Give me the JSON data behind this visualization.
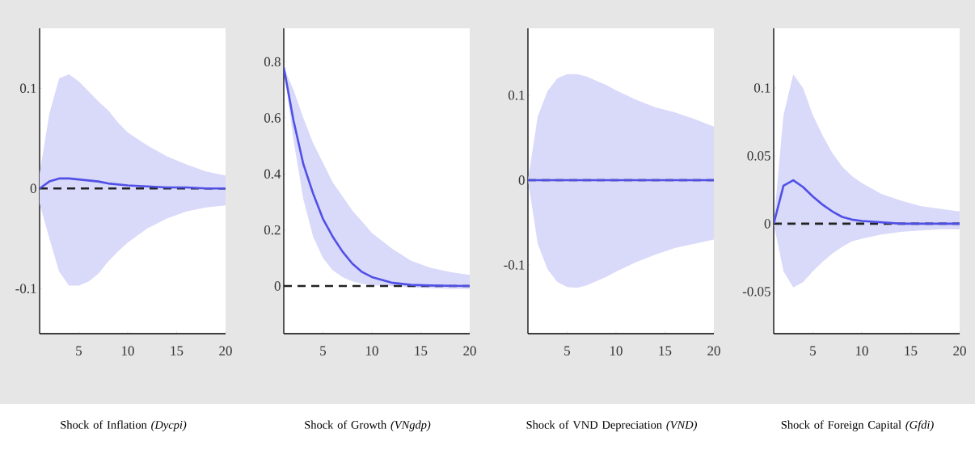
{
  "chart_data": [
    {
      "type": "line",
      "xlabel": "Shock of Inflation *(Dycpi)*",
      "xlim": [
        1,
        20
      ],
      "ylim": [
        -0.145,
        0.16
      ],
      "xticks": [
        5,
        10,
        15,
        20
      ],
      "yticks": [
        -0.1,
        0,
        0.1
      ],
      "x": [
        1,
        2,
        3,
        4,
        5,
        6,
        7,
        8,
        9,
        10,
        12,
        14,
        16,
        18,
        20
      ],
      "series": [
        {
          "color": "#5050e6",
          "values": [
            0,
            0.007,
            0.01,
            0.01,
            0.009,
            0.008,
            0.007,
            0.005,
            0.004,
            0.003,
            0.002,
            0.001,
            0.001,
            0,
            0
          ],
          "lower": [
            -0.015,
            -0.05,
            -0.083,
            -0.097,
            -0.097,
            -0.093,
            -0.085,
            -0.073,
            -0.063,
            -0.054,
            -0.04,
            -0.03,
            -0.023,
            -0.019,
            -0.017
          ],
          "upper": [
            0.015,
            0.075,
            0.11,
            0.114,
            0.107,
            0.097,
            0.087,
            0.078,
            0.066,
            0.056,
            0.043,
            0.032,
            0.024,
            0.017,
            0.013
          ]
        }
      ],
      "ref_lines": [
        {
          "axis": "y",
          "value": 0,
          "color": "#222222",
          "line_style": "dashed"
        }
      ]
    },
    {
      "type": "line",
      "xlabel": "Shock of Growth *(VNgdp)*",
      "xlim": [
        1,
        20
      ],
      "ylim": [
        -0.17,
        0.92
      ],
      "xticks": [
        5,
        10,
        15,
        20
      ],
      "yticks": [
        0,
        0.2,
        0.4,
        0.6,
        0.8
      ],
      "x": [
        1,
        2,
        3,
        4,
        5,
        6,
        7,
        8,
        9,
        10,
        12,
        14,
        16,
        18,
        20
      ],
      "series": [
        {
          "color": "#5050e6",
          "values": [
            0.78,
            0.59,
            0.435,
            0.33,
            0.24,
            0.176,
            0.123,
            0.08,
            0.05,
            0.032,
            0.012,
            0.004,
            0.002,
            0.001,
            0
          ],
          "lower": [
            0.78,
            0.52,
            0.31,
            0.176,
            0.1,
            0.056,
            0.032,
            0.017,
            0.008,
            0.003,
            0,
            -0.005,
            -0.008,
            -0.01,
            -0.01
          ],
          "upper": [
            0.78,
            0.7,
            0.6,
            0.51,
            0.44,
            0.37,
            0.32,
            0.27,
            0.23,
            0.19,
            0.135,
            0.09,
            0.065,
            0.05,
            0.04
          ]
        }
      ],
      "ref_lines": [
        {
          "axis": "y",
          "value": 0,
          "color": "#222222",
          "line_style": "dashed"
        }
      ]
    },
    {
      "type": "line",
      "xlabel": "Shock of VND Depreciation *(VND)*",
      "xlim": [
        1,
        20
      ],
      "ylim": [
        -0.181,
        0.179
      ],
      "xticks": [
        5,
        10,
        15,
        20
      ],
      "yticks": [
        -0.1,
        0,
        0.1
      ],
      "x": [
        1,
        2,
        3,
        4,
        5,
        6,
        7,
        8,
        9,
        10,
        12,
        14,
        16,
        18,
        20
      ],
      "series": [
        {
          "color": "#5050e6",
          "values": [
            0,
            0,
            0,
            0,
            0,
            0,
            0,
            0,
            0,
            0,
            0,
            0,
            0,
            0,
            0
          ],
          "lower": [
            0,
            -0.075,
            -0.105,
            -0.12,
            -0.126,
            -0.127,
            -0.124,
            -0.119,
            -0.114,
            -0.108,
            -0.097,
            -0.088,
            -0.08,
            -0.075,
            -0.07
          ],
          "upper": [
            0,
            0.075,
            0.105,
            0.12,
            0.125,
            0.125,
            0.122,
            0.117,
            0.112,
            0.106,
            0.095,
            0.086,
            0.08,
            0.072,
            0.063
          ]
        }
      ],
      "ref_lines": [
        {
          "axis": "y",
          "value": 0,
          "color": "#222222",
          "line_style": "dashed"
        }
      ]
    },
    {
      "type": "line",
      "xlabel": "Shock of Foreign Capital *(Gfdi)*",
      "xlim": [
        1,
        20
      ],
      "ylim": [
        -0.081,
        0.144
      ],
      "xticks": [
        5,
        10,
        15,
        20
      ],
      "yticks": [
        -0.05,
        0,
        0.05,
        0.1
      ],
      "x": [
        1,
        2,
        3,
        4,
        5,
        6,
        7,
        8,
        9,
        10,
        12,
        14,
        16,
        18,
        20
      ],
      "series": [
        {
          "color": "#5050e6",
          "values": [
            0,
            0.028,
            0.032,
            0.027,
            0.02,
            0.014,
            0.009,
            0.005,
            0.003,
            0.002,
            0.001,
            0,
            0,
            0,
            0
          ],
          "lower": [
            0,
            -0.035,
            -0.047,
            -0.043,
            -0.035,
            -0.028,
            -0.022,
            -0.017,
            -0.013,
            -0.011,
            -0.008,
            -0.006,
            -0.005,
            -0.004,
            -0.004
          ],
          "upper": [
            0,
            0.08,
            0.11,
            0.1,
            0.08,
            0.065,
            0.052,
            0.042,
            0.035,
            0.03,
            0.022,
            0.017,
            0.013,
            0.011,
            0.009
          ]
        }
      ],
      "ref_lines": [
        {
          "axis": "y",
          "value": 0,
          "color": "#222222",
          "line_style": "dashed"
        }
      ]
    }
  ]
}
